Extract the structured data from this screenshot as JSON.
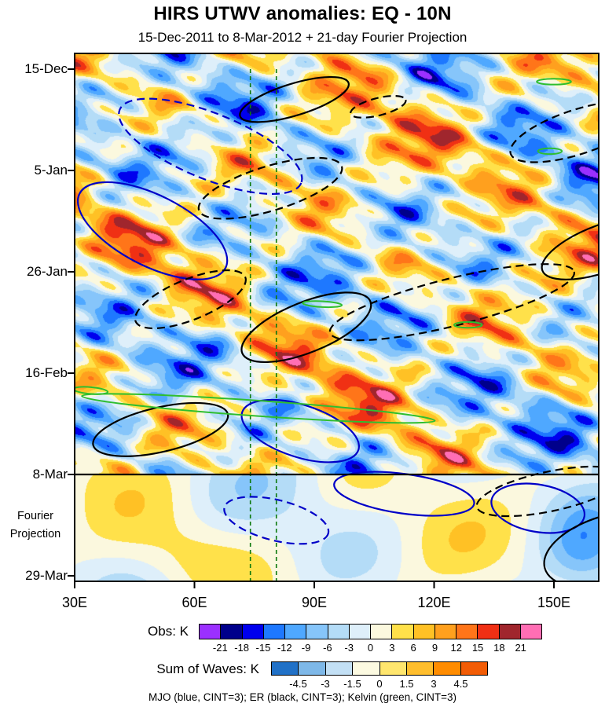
{
  "title": "HIRS UTWV anomalies: EQ - 10N",
  "subtitle": "15-Dec-2011 to 8-Mar-2012 + 21-day Fourier Projection",
  "footnote": "MJO (blue, CINT=3); ER (black, CINT=3); Kelvin (green, CINT=3)",
  "chart_data": {
    "type": "heatmap",
    "description": "Hovmoller (longitude vs time) diagram of HIRS upper-tropospheric water vapor anomalies averaged over EQ-10N, observations 15-Dec-2011 to 8-Mar-2012 plus a 21-day Fourier projection below the 8-Mar line; MJO, ER and Kelvin wave contours overlaid.",
    "x_axis": {
      "range_lon": [
        30,
        161
      ],
      "ticks": [
        {
          "label": "30E",
          "lon": 30
        },
        {
          "label": "60E",
          "lon": 60
        },
        {
          "label": "90E",
          "lon": 90
        },
        {
          "label": "120E",
          "lon": 120
        },
        {
          "label": "150E",
          "lon": 150
        }
      ]
    },
    "y_axis": {
      "range_days": [
        -3.3,
        106.2
      ],
      "ticks": [
        {
          "label": "15-Dec",
          "day": 0
        },
        {
          "label": "5-Jan",
          "day": 21
        },
        {
          "label": "26-Jan",
          "day": 42
        },
        {
          "label": "16-Feb",
          "day": 63
        },
        {
          "label": "8-Mar",
          "day": 84
        },
        {
          "label": "29-Mar",
          "day": 105
        }
      ],
      "note": "Fourier Projection"
    },
    "obs_colorbar": {
      "label": "Obs: K",
      "tick_labels": [
        "-21",
        "-18",
        "-15",
        "-12",
        "-9",
        "-6",
        "-3",
        "0",
        "3",
        "6",
        "9",
        "12",
        "15",
        "18",
        "21"
      ],
      "colors": [
        "#9B30FF",
        "#00008B",
        "#0000EE",
        "#1E78FF",
        "#4FA8FF",
        "#86C5FA",
        "#B4DCF7",
        "#DEEFFA",
        "#FBF8DE",
        "#FFE14A",
        "#FFC125",
        "#FFA01E",
        "#FF7519",
        "#F03014",
        "#A0262D",
        "#FF6EB4"
      ]
    },
    "waves_colorbar": {
      "label": "Sum of Waves: K",
      "tick_labels": [
        "-4.5",
        "-3",
        "-1.5",
        "0",
        "1.5",
        "3",
        "4.5"
      ],
      "colors": [
        "#2171C7",
        "#7EB8E8",
        "#C3E0F5",
        "#FCFAE1",
        "#FFE66E",
        "#FFBE2D",
        "#FF8C00",
        "#F25C05"
      ]
    },
    "reference_lines": {
      "vertical_green_dashed_lons": [
        74,
        80.5
      ],
      "fourier_start_label": "8-Mar",
      "fourier_start_day": 84
    },
    "wave_contours": {
      "legend": [
        {
          "name": "MJO",
          "color": "#0000C8",
          "cint": 3
        },
        {
          "name": "ER",
          "color": "#000000",
          "cint": 3
        },
        {
          "name": "Kelvin",
          "color": "#2FBE2F",
          "cint": 3
        }
      ],
      "ellipses": [
        {
          "wave": "MJO",
          "style": "dashed",
          "lon": 64,
          "day": 16,
          "rlon": 24.5,
          "rday": 6.8,
          "rot": 22
        },
        {
          "wave": "MJO",
          "style": "solid",
          "lon": 49.5,
          "day": 33.5,
          "rlon": 20.5,
          "rday": 7.3,
          "rot": 27
        },
        {
          "wave": "MJO",
          "style": "solid",
          "lon": 86.5,
          "day": 75,
          "rlon": 15.3,
          "rday": 5.4,
          "rot": 18
        },
        {
          "wave": "MJO",
          "style": "solid",
          "lon": 112.5,
          "day": 88,
          "rlon": 17.7,
          "rday": 4.1,
          "rot": 8
        },
        {
          "wave": "MJO",
          "style": "solid",
          "lon": 146,
          "day": 91,
          "rlon": 11.8,
          "rday": 4.9,
          "rot": 10
        },
        {
          "wave": "MJO",
          "style": "dashed",
          "lon": 80.5,
          "day": 93.5,
          "rlon": 13.4,
          "rday": 4.2,
          "rot": 14
        },
        {
          "wave": "ER",
          "style": "solid",
          "lon": 85,
          "day": 6.3,
          "rlon": 14.2,
          "rday": 3.3,
          "rot": -17
        },
        {
          "wave": "ER",
          "style": "dashed",
          "lon": 106,
          "day": 7.8,
          "rlon": 7.1,
          "rday": 1.8,
          "rot": -14
        },
        {
          "wave": "ER",
          "style": "dashed",
          "lon": 79,
          "day": 24.7,
          "rlon": 18.7,
          "rday": 4.6,
          "rot": -17
        },
        {
          "wave": "ER",
          "style": "dashed",
          "lon": 59,
          "day": 47.7,
          "rlon": 14.8,
          "rday": 4.2,
          "rot": -22
        },
        {
          "wave": "ER",
          "style": "solid",
          "lon": 88,
          "day": 53.5,
          "rlon": 17.3,
          "rday": 5.2,
          "rot": -22
        },
        {
          "wave": "ER",
          "style": "dashed",
          "lon": 124.5,
          "day": 48.3,
          "rlon": 31.5,
          "rday": 4.9,
          "rot": -14
        },
        {
          "wave": "ER",
          "style": "dashed",
          "lon": 156,
          "day": 13,
          "rlon": 17.7,
          "rday": 4.6,
          "rot": -18
        },
        {
          "wave": "ER",
          "style": "solid",
          "lon": 162.8,
          "day": 37,
          "rlon": 16.7,
          "rday": 4.9,
          "rot": -20
        },
        {
          "wave": "ER",
          "style": "solid",
          "lon": 51.5,
          "day": 74.7,
          "rlon": 17.3,
          "rday": 4.6,
          "rot": -13
        },
        {
          "wave": "ER",
          "style": "dashed",
          "lon": 149,
          "day": 87.5,
          "rlon": 18.7,
          "rday": 4.1,
          "rot": -12
        },
        {
          "wave": "ER",
          "style": "solid",
          "lon": 164.8,
          "day": 99.6,
          "rlon": 17.7,
          "rday": 7.3,
          "rot": -15
        },
        {
          "wave": "Kelvin",
          "style": "solid",
          "lon": 76,
          "day": 70.3,
          "rlon": 44.3,
          "rday": 1.6,
          "rot": 4
        },
        {
          "wave": "Kelvin",
          "style": "solid",
          "lon": 92,
          "day": 48.7,
          "rlon": 4.9,
          "rday": 0.6,
          "rot": 3
        },
        {
          "wave": "Kelvin",
          "style": "solid",
          "lon": 150,
          "day": 2.6,
          "rlon": 4.3,
          "rday": 0.6,
          "rot": 0
        },
        {
          "wave": "Kelvin",
          "style": "solid",
          "lon": 34,
          "day": 66.6,
          "rlon": 4.3,
          "rday": 0.7,
          "rot": 5
        },
        {
          "wave": "Kelvin",
          "style": "solid",
          "lon": 128.5,
          "day": 53,
          "rlon": 3.5,
          "rday": 0.6,
          "rot": 0
        },
        {
          "wave": "Kelvin",
          "style": "solid",
          "lon": 149,
          "day": 17,
          "rlon": 3.0,
          "rday": 0.6,
          "rot": 0
        }
      ]
    },
    "field_synthesis": {
      "contour_interval_k": 3,
      "obs_components": [
        {
          "amp": 7.2,
          "wl": 57,
          "tper": -31,
          "ph": 1.0
        },
        {
          "amp": 5.0,
          "wl": 39,
          "tper": 23,
          "ph": 2.3
        },
        {
          "amp": 4.4,
          "wl": 23,
          "tper": -7.3,
          "ph": 0.7
        },
        {
          "amp": 3.6,
          "wl": 93,
          "tper": -61,
          "ph": 4.0
        },
        {
          "amp": 3.1,
          "wl": 16,
          "tper": 13.4,
          "ph": 1.7
        },
        {
          "amp": 2.6,
          "wl": 11,
          "tper": -5.2,
          "ph": 0.3
        },
        {
          "amp": 2.2,
          "wl": 131,
          "tper": 47,
          "ph": 2.0
        },
        {
          "amp": 2.0,
          "wl": 29,
          "tper": -17,
          "ph": 5.1
        }
      ],
      "projection_components": [
        {
          "amp": 3.0,
          "wl": 72,
          "tper": -42,
          "ph": 1.2
        },
        {
          "amp": 2.3,
          "wl": 47,
          "tper": 36,
          "ph": 2.8
        },
        {
          "amp": 1.6,
          "wl": 101,
          "tper": 80,
          "ph": 0.9
        }
      ],
      "projection_blobs": [
        {
          "amp": -7,
          "lon": 157,
          "day": 99,
          "slon": 9,
          "sday": 9.5
        },
        {
          "amp": 4.5,
          "lon": 57,
          "day": 101,
          "slon": 14,
          "sday": 8
        }
      ]
    }
  }
}
